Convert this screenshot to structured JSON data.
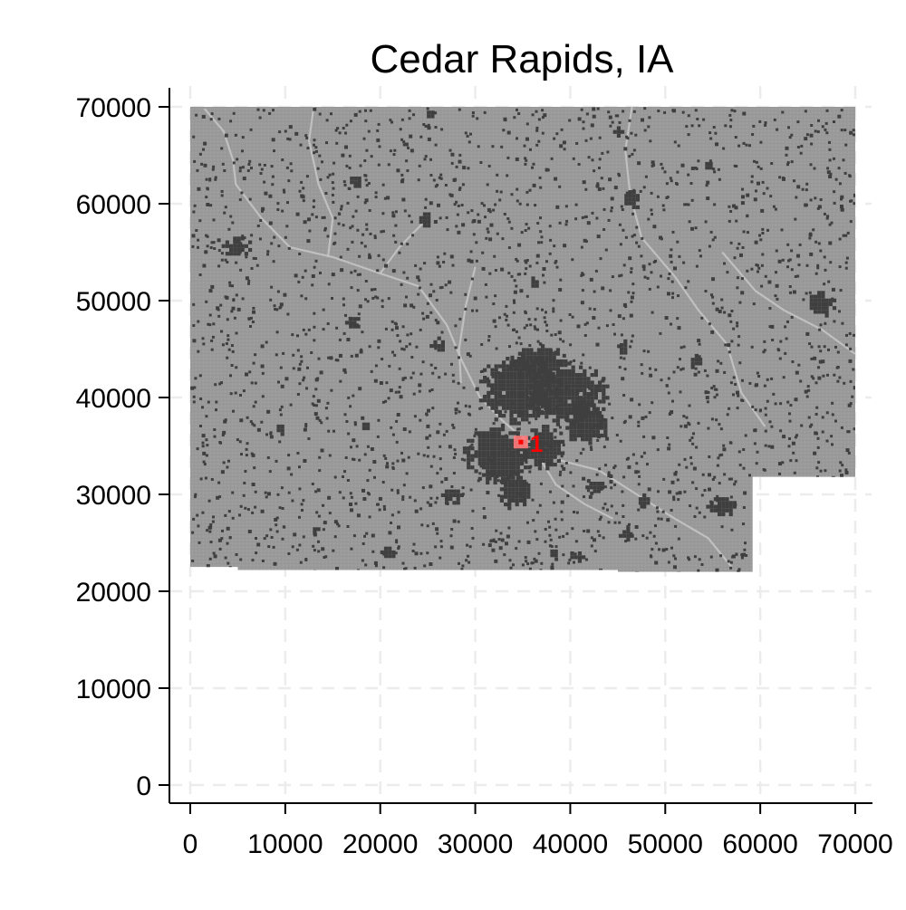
{
  "chart_data": {
    "type": "map",
    "title": "Cedar Rapids, IA",
    "xlabel": "",
    "ylabel": "",
    "xlim": [
      0,
      70000
    ],
    "ylim": [
      0,
      70000
    ],
    "x_ticks": [
      0,
      10000,
      20000,
      30000,
      40000,
      50000,
      60000,
      70000
    ],
    "y_ticks": [
      0,
      10000,
      20000,
      30000,
      40000,
      50000,
      60000,
      70000
    ],
    "grid": true,
    "grid_style": "dashed",
    "region_color": "#9a9a9a",
    "developed_color": "#3f3f3f",
    "river_color": "#c4c4c4",
    "marker_color": "#ff0000",
    "region_outline": [
      [
        0,
        70000
      ],
      [
        70000,
        70000
      ],
      [
        70000,
        31800
      ],
      [
        59200,
        31800
      ],
      [
        59200,
        22000
      ],
      [
        45000,
        22000
      ],
      [
        45000,
        22200
      ],
      [
        5000,
        22200
      ],
      [
        5000,
        22500
      ],
      [
        0,
        22500
      ]
    ],
    "developed_clusters": [
      {
        "x": 34500,
        "y": 41000,
        "rx": 4500,
        "ry": 3600
      },
      {
        "x": 39500,
        "y": 40500,
        "rx": 4600,
        "ry": 3200
      },
      {
        "x": 36500,
        "y": 43800,
        "rx": 3200,
        "ry": 1700
      },
      {
        "x": 41500,
        "y": 37500,
        "rx": 2400,
        "ry": 2300
      },
      {
        "x": 32300,
        "y": 34300,
        "rx": 3600,
        "ry": 3000
      },
      {
        "x": 37000,
        "y": 35000,
        "rx": 2400,
        "ry": 2200
      },
      {
        "x": 34000,
        "y": 30500,
        "rx": 1800,
        "ry": 1800
      },
      {
        "x": 4800,
        "y": 55800,
        "rx": 1500,
        "ry": 1200
      },
      {
        "x": 66300,
        "y": 49800,
        "rx": 1500,
        "ry": 1200
      },
      {
        "x": 55800,
        "y": 29000,
        "rx": 1500,
        "ry": 1100
      },
      {
        "x": 46300,
        "y": 60500,
        "rx": 1000,
        "ry": 900
      },
      {
        "x": 24500,
        "y": 58500,
        "rx": 800,
        "ry": 1000
      },
      {
        "x": 27500,
        "y": 30000,
        "rx": 1100,
        "ry": 900
      },
      {
        "x": 20500,
        "y": 24200,
        "rx": 900,
        "ry": 800
      },
      {
        "x": 17200,
        "y": 62500,
        "rx": 800,
        "ry": 700
      },
      {
        "x": 17000,
        "y": 48000,
        "rx": 700,
        "ry": 700
      },
      {
        "x": 40500,
        "y": 23800,
        "rx": 900,
        "ry": 700
      },
      {
        "x": 45800,
        "y": 26000,
        "rx": 700,
        "ry": 700
      },
      {
        "x": 9300,
        "y": 37000,
        "rx": 600,
        "ry": 600
      },
      {
        "x": 18300,
        "y": 37200,
        "rx": 600,
        "ry": 600
      },
      {
        "x": 26000,
        "y": 45500,
        "rx": 800,
        "ry": 800
      },
      {
        "x": 45500,
        "y": 45300,
        "rx": 700,
        "ry": 700
      },
      {
        "x": 53000,
        "y": 43800,
        "rx": 700,
        "ry": 700
      },
      {
        "x": 36000,
        "y": 52000,
        "rx": 500,
        "ry": 500
      },
      {
        "x": 42500,
        "y": 31000,
        "rx": 900,
        "ry": 700
      },
      {
        "x": 47500,
        "y": 29500,
        "rx": 700,
        "ry": 600
      },
      {
        "x": 13000,
        "y": 26500,
        "rx": 500,
        "ry": 500
      },
      {
        "x": 25000,
        "y": 69500,
        "rx": 500,
        "ry": 500
      },
      {
        "x": 45000,
        "y": 67500,
        "rx": 500,
        "ry": 500
      },
      {
        "x": 54300,
        "y": 64200,
        "rx": 500,
        "ry": 500
      },
      {
        "x": 38000,
        "y": 24200,
        "rx": 500,
        "ry": 500
      }
    ],
    "rivers": [
      [
        [
          1500,
          69800
        ],
        [
          3500,
          67500
        ],
        [
          4500,
          64500
        ],
        [
          4800,
          62000
        ],
        [
          7500,
          58500
        ],
        [
          10500,
          55500
        ],
        [
          15000,
          54500
        ],
        [
          20000,
          52800
        ],
        [
          24000,
          51500
        ],
        [
          27000,
          47500
        ],
        [
          28500,
          44000
        ],
        [
          30500,
          40000
        ],
        [
          33000,
          37500
        ],
        [
          36000,
          35000
        ],
        [
          39000,
          33500
        ],
        [
          43000,
          32500
        ],
        [
          47000,
          30000
        ],
        [
          51000,
          27500
        ],
        [
          54500,
          25500
        ],
        [
          57000,
          22500
        ]
      ],
      [
        [
          30000,
          53500
        ],
        [
          29000,
          49500
        ],
        [
          28300,
          45000
        ],
        [
          28500,
          41500
        ]
      ],
      [
        [
          46500,
          70000
        ],
        [
          45800,
          65500
        ],
        [
          46300,
          61000
        ],
        [
          47500,
          56500
        ],
        [
          51000,
          52500
        ],
        [
          53500,
          49000
        ],
        [
          56500,
          45500
        ],
        [
          58000,
          40500
        ],
        [
          60500,
          37000
        ]
      ],
      [
        [
          70000,
          44500
        ],
        [
          66500,
          47000
        ],
        [
          62500,
          49000
        ],
        [
          59500,
          51000
        ],
        [
          56000,
          55000
        ]
      ],
      [
        [
          14500,
          54500
        ],
        [
          15000,
          58500
        ],
        [
          13500,
          62000
        ],
        [
          12500,
          66500
        ],
        [
          13000,
          70000
        ]
      ],
      [
        [
          36500,
          34200
        ],
        [
          38500,
          31000
        ],
        [
          41500,
          29000
        ],
        [
          44500,
          27500
        ]
      ],
      [
        [
          20000,
          52800
        ],
        [
          22000,
          55500
        ],
        [
          24500,
          58000
        ]
      ]
    ],
    "markers": [
      {
        "label": "1",
        "x": 34800,
        "y": 35400
      }
    ]
  }
}
